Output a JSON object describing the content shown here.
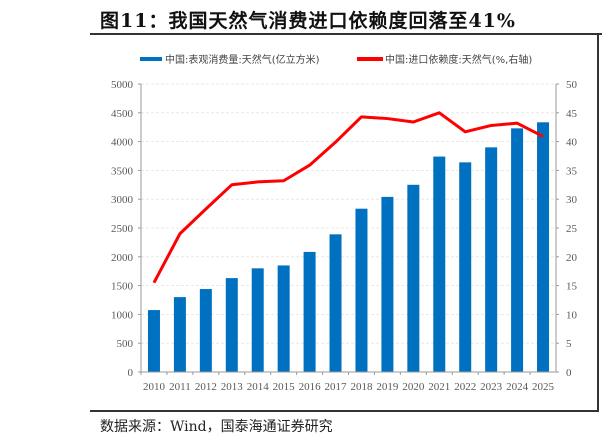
{
  "title": "图11：我国天然气消费进口依赖度回落至41%",
  "source": "数据来源：Wind，国泰海通证券研究",
  "chart_data": {
    "type": "bar+line",
    "title": "图11：我国天然气消费进口依赖度回落至41%",
    "categories": [
      "2010",
      "2011",
      "2012",
      "2013",
      "2014",
      "2015",
      "2016",
      "2017",
      "2018",
      "2019",
      "2020",
      "2021",
      "2022",
      "2023",
      "2024",
      "2025"
    ],
    "series": [
      {
        "name": "中国:表观消费量:天然气(亿立方米)",
        "type": "bar",
        "axis": "left",
        "color": "#0070C0",
        "values": [
          1075,
          1300,
          1440,
          1630,
          1800,
          1850,
          2085,
          2390,
          2835,
          3040,
          3250,
          3740,
          3640,
          3900,
          4230,
          4335
        ]
      },
      {
        "name": "中国:进口依赖度:天然气(%,右轴)",
        "type": "line",
        "axis": "right",
        "color": "#FF0000",
        "values": [
          15.5,
          24.0,
          28.3,
          32.5,
          33.0,
          33.2,
          35.9,
          39.9,
          44.3,
          44.0,
          43.4,
          45.0,
          41.7,
          42.8,
          43.2,
          40.9
        ]
      }
    ],
    "left_axis": {
      "ylim": [
        0,
        5000
      ],
      "ticks": [
        "0",
        "500",
        "1000",
        "1500",
        "2000",
        "2500",
        "3000",
        "3500",
        "4000",
        "4500",
        "5000"
      ]
    },
    "right_axis": {
      "ylim": [
        0,
        50
      ],
      "ticks": [
        "0",
        "5",
        "10",
        "15",
        "20",
        "25",
        "30",
        "35",
        "40",
        "45",
        "50"
      ]
    },
    "legend": "top",
    "grid": true
  }
}
